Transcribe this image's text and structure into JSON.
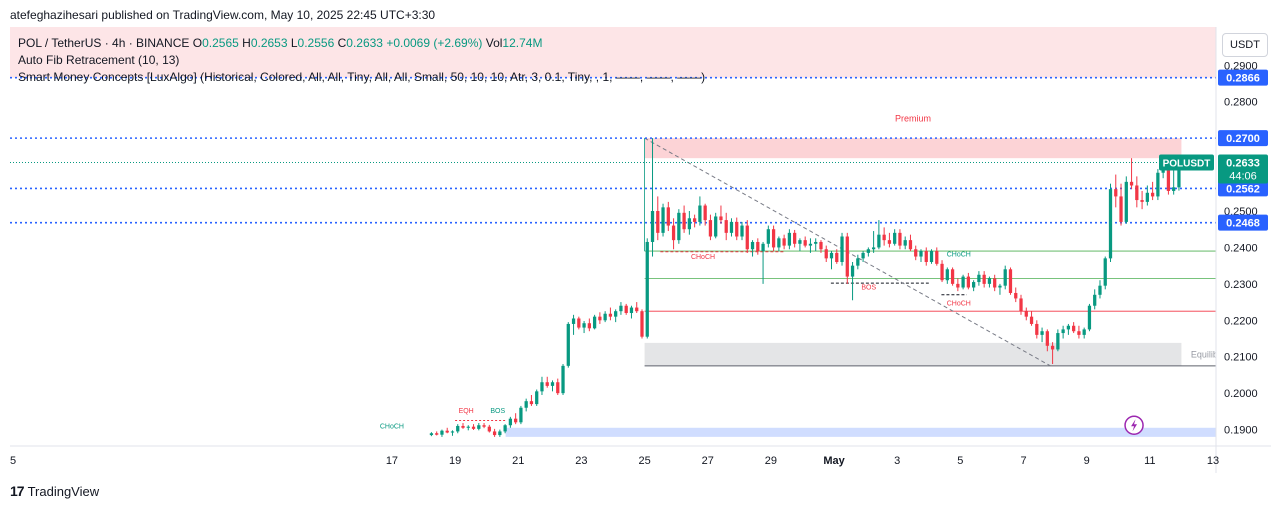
{
  "header": {
    "publisher_line": "atefeghazihesari published on TradingView.com, May 10, 2025 22:45 UTC+3:30"
  },
  "legend": {
    "symbol_line": "POL / TetherUS · 4h · BINANCE",
    "open_label": "O",
    "open": "0.2565",
    "high_label": "H",
    "high": "0.2653",
    "low_label": "L",
    "low": "0.2556",
    "close_label": "C",
    "close": "0.2633",
    "change": "+0.0069 (+2.69%)",
    "vol_label": "Vol",
    "vol": "12.74M",
    "indicator1": "Auto Fib Retracement (10, 13)",
    "indicator2": "Smart Money Concepts [LuxAlgo] (Historical, Colored, All, All, Tiny, All, All, Small, 50, 10, 10, Atr, 3, 0.1, Tiny, , 1, ——, ——, ——)"
  },
  "axis": {
    "currency": "USDT"
  },
  "footer": {
    "brand_mark": "17",
    "brand": "TradingView"
  },
  "colors": {
    "up": "#089981",
    "down": "#f23645",
    "fib": "#2962ff",
    "premium": "#f23645",
    "equilibrium": "#9598a1"
  },
  "chart_data": {
    "type": "candlestick",
    "title": "POL / TetherUS · 4h · BINANCE",
    "ylim": [
      0.1855,
      0.3005
    ],
    "y_ticks": [
      "0.1900",
      "0.2000",
      "0.2100",
      "0.2200",
      "0.2300",
      "0.2400",
      "0.2500",
      "0.2600",
      "0.2800",
      "0.2900"
    ],
    "x_ticks": [
      {
        "label": "5",
        "t": -2.0
      },
      {
        "label": "17",
        "t": 10.0
      },
      {
        "label": "19",
        "t": 12.0
      },
      {
        "label": "21",
        "t": 14.0
      },
      {
        "label": "23",
        "t": 16.0
      },
      {
        "label": "25",
        "t": 18.0
      },
      {
        "label": "27",
        "t": 20.0
      },
      {
        "label": "29",
        "t": 22.0
      },
      {
        "label": "May",
        "t": 24.0
      },
      {
        "label": "3",
        "t": 26.0
      },
      {
        "label": "5",
        "t": 28.0
      },
      {
        "label": "7",
        "t": 30.0
      },
      {
        "label": "9",
        "t": 32.0
      },
      {
        "label": "11",
        "t": 34.0
      },
      {
        "label": "13",
        "t": 36.0
      }
    ],
    "candle_start_t": 11.25,
    "candle_step_t": 0.1667,
    "ohlc": [
      [
        0.1885,
        0.1893,
        0.1882,
        0.189
      ],
      [
        0.189,
        0.1895,
        0.1884,
        0.1886
      ],
      [
        0.1886,
        0.19,
        0.188,
        0.1897
      ],
      [
        0.1897,
        0.1905,
        0.189,
        0.1892
      ],
      [
        0.1892,
        0.1898,
        0.1883,
        0.1895
      ],
      [
        0.1895,
        0.1915,
        0.189,
        0.191
      ],
      [
        0.191,
        0.1918,
        0.1902,
        0.1905
      ],
      [
        0.1905,
        0.1912,
        0.1898,
        0.1908
      ],
      [
        0.1908,
        0.1915,
        0.1899,
        0.1902
      ],
      [
        0.1902,
        0.1918,
        0.1898,
        0.1912
      ],
      [
        0.1912,
        0.1918,
        0.1904,
        0.1908
      ],
      [
        0.1908,
        0.1913,
        0.1892,
        0.1895
      ],
      [
        0.1895,
        0.1902,
        0.188,
        0.1885
      ],
      [
        0.1885,
        0.19,
        0.188,
        0.1895
      ],
      [
        0.1895,
        0.1915,
        0.189,
        0.1912
      ],
      [
        0.1912,
        0.1935,
        0.1905,
        0.193
      ],
      [
        0.193,
        0.1945,
        0.1915,
        0.192
      ],
      [
        0.192,
        0.1965,
        0.1915,
        0.196
      ],
      [
        0.196,
        0.1985,
        0.195,
        0.1978
      ],
      [
        0.1978,
        0.1995,
        0.1965,
        0.197
      ],
      [
        0.197,
        0.201,
        0.1965,
        0.2005
      ],
      [
        0.2005,
        0.2045,
        0.1995,
        0.203
      ],
      [
        0.203,
        0.2045,
        0.2015,
        0.202
      ],
      [
        0.202,
        0.2035,
        0.2005,
        0.203
      ],
      [
        0.203,
        0.204,
        0.1995,
        0.2
      ],
      [
        0.2,
        0.208,
        0.1995,
        0.2075
      ],
      [
        0.2075,
        0.2195,
        0.207,
        0.219
      ],
      [
        0.219,
        0.2215,
        0.216,
        0.2205
      ],
      [
        0.2205,
        0.221,
        0.2175,
        0.218
      ],
      [
        0.218,
        0.2198,
        0.2165,
        0.2192
      ],
      [
        0.2192,
        0.2205,
        0.217,
        0.2178
      ],
      [
        0.2178,
        0.2215,
        0.2175,
        0.221
      ],
      [
        0.221,
        0.2222,
        0.219,
        0.22
      ],
      [
        0.22,
        0.2225,
        0.2195,
        0.2218
      ],
      [
        0.2218,
        0.2235,
        0.22,
        0.221
      ],
      [
        0.221,
        0.223,
        0.2195,
        0.2225
      ],
      [
        0.2225,
        0.225,
        0.2215,
        0.224
      ],
      [
        0.224,
        0.2245,
        0.2215,
        0.222
      ],
      [
        0.222,
        0.224,
        0.2205,
        0.2235
      ],
      [
        0.2235,
        0.225,
        0.222,
        0.2225
      ],
      [
        0.2225,
        0.223,
        0.215,
        0.2155
      ],
      [
        0.2155,
        0.2425,
        0.215,
        0.2415
      ],
      [
        0.2415,
        0.27,
        0.2375,
        0.25
      ],
      [
        0.25,
        0.254,
        0.242,
        0.244
      ],
      [
        0.244,
        0.252,
        0.243,
        0.251
      ],
      [
        0.251,
        0.2525,
        0.2445,
        0.246
      ],
      [
        0.246,
        0.248,
        0.2395,
        0.242
      ],
      [
        0.242,
        0.2505,
        0.241,
        0.2495
      ],
      [
        0.2495,
        0.2515,
        0.244,
        0.245
      ],
      [
        0.245,
        0.25,
        0.2435,
        0.248
      ],
      [
        0.248,
        0.249,
        0.2455,
        0.247
      ],
      [
        0.247,
        0.254,
        0.246,
        0.2515
      ],
      [
        0.2515,
        0.252,
        0.246,
        0.2475
      ],
      [
        0.2475,
        0.249,
        0.242,
        0.243
      ],
      [
        0.243,
        0.2495,
        0.2425,
        0.2485
      ],
      [
        0.2485,
        0.2515,
        0.2465,
        0.2475
      ],
      [
        0.2475,
        0.2495,
        0.242,
        0.244
      ],
      [
        0.244,
        0.248,
        0.243,
        0.247
      ],
      [
        0.247,
        0.2482,
        0.242,
        0.243
      ],
      [
        0.243,
        0.247,
        0.242,
        0.246
      ],
      [
        0.246,
        0.2475,
        0.2385,
        0.2395
      ],
      [
        0.2395,
        0.242,
        0.2375,
        0.2415
      ],
      [
        0.2415,
        0.2425,
        0.238,
        0.239
      ],
      [
        0.239,
        0.2415,
        0.23,
        0.241
      ],
      [
        0.241,
        0.246,
        0.24,
        0.245
      ],
      [
        0.245,
        0.246,
        0.239,
        0.24
      ],
      [
        0.24,
        0.243,
        0.239,
        0.2425
      ],
      [
        0.2425,
        0.2435,
        0.2395,
        0.2405
      ],
      [
        0.2405,
        0.245,
        0.2395,
        0.244
      ],
      [
        0.244,
        0.2448,
        0.24,
        0.241
      ],
      [
        0.241,
        0.2425,
        0.239,
        0.242
      ],
      [
        0.242,
        0.243,
        0.24,
        0.2405
      ],
      [
        0.2405,
        0.2425,
        0.2385,
        0.241
      ],
      [
        0.241,
        0.2425,
        0.239,
        0.2415
      ],
      [
        0.2415,
        0.242,
        0.2385,
        0.2395
      ],
      [
        0.2395,
        0.2405,
        0.236,
        0.237
      ],
      [
        0.237,
        0.239,
        0.234,
        0.2385
      ],
      [
        0.2385,
        0.2395,
        0.2355,
        0.236
      ],
      [
        0.236,
        0.244,
        0.235,
        0.243
      ],
      [
        0.243,
        0.244,
        0.23,
        0.232
      ],
      [
        0.232,
        0.236,
        0.2255,
        0.235
      ],
      [
        0.235,
        0.238,
        0.234,
        0.237
      ],
      [
        0.237,
        0.239,
        0.236,
        0.2385
      ],
      [
        0.2385,
        0.24,
        0.2375,
        0.2395
      ],
      [
        0.2395,
        0.2445,
        0.2385,
        0.24
      ],
      [
        0.24,
        0.2475,
        0.2395,
        0.2435
      ],
      [
        0.2435,
        0.2455,
        0.2405,
        0.242
      ],
      [
        0.242,
        0.244,
        0.24,
        0.241
      ],
      [
        0.241,
        0.245,
        0.2405,
        0.244
      ],
      [
        0.244,
        0.245,
        0.2395,
        0.2405
      ],
      [
        0.2405,
        0.243,
        0.2395,
        0.242
      ],
      [
        0.242,
        0.2435,
        0.239,
        0.2395
      ],
      [
        0.2395,
        0.2405,
        0.2365,
        0.2375
      ],
      [
        0.2375,
        0.2395,
        0.236,
        0.239
      ],
      [
        0.239,
        0.24,
        0.235,
        0.236
      ],
      [
        0.236,
        0.2395,
        0.2355,
        0.239
      ],
      [
        0.239,
        0.24,
        0.235,
        0.2355
      ],
      [
        0.2355,
        0.2365,
        0.2305,
        0.231
      ],
      [
        0.231,
        0.2345,
        0.23,
        0.234
      ],
      [
        0.234,
        0.2345,
        0.2295,
        0.23
      ],
      [
        0.23,
        0.2315,
        0.228,
        0.229
      ],
      [
        0.229,
        0.2325,
        0.2285,
        0.232
      ],
      [
        0.232,
        0.233,
        0.2285,
        0.229
      ],
      [
        0.229,
        0.231,
        0.228,
        0.2305
      ],
      [
        0.2305,
        0.2335,
        0.2295,
        0.2325
      ],
      [
        0.2325,
        0.2335,
        0.229,
        0.23
      ],
      [
        0.23,
        0.232,
        0.229,
        0.2315
      ],
      [
        0.2315,
        0.2325,
        0.228,
        0.229
      ],
      [
        0.229,
        0.23,
        0.227,
        0.2295
      ],
      [
        0.2295,
        0.235,
        0.2285,
        0.234
      ],
      [
        0.234,
        0.2345,
        0.227,
        0.2275
      ],
      [
        0.2275,
        0.229,
        0.225,
        0.226
      ],
      [
        0.226,
        0.227,
        0.2215,
        0.2225
      ],
      [
        0.2225,
        0.2235,
        0.22,
        0.221
      ],
      [
        0.221,
        0.2225,
        0.2185,
        0.219
      ],
      [
        0.219,
        0.22,
        0.215,
        0.216
      ],
      [
        0.216,
        0.218,
        0.214,
        0.217
      ],
      [
        0.217,
        0.2175,
        0.2115,
        0.213
      ],
      [
        0.213,
        0.214,
        0.208,
        0.212
      ],
      [
        0.212,
        0.2175,
        0.2115,
        0.2165
      ],
      [
        0.2165,
        0.2185,
        0.215,
        0.2175
      ],
      [
        0.2175,
        0.219,
        0.216,
        0.2185
      ],
      [
        0.2185,
        0.2195,
        0.2165,
        0.217
      ],
      [
        0.217,
        0.2185,
        0.215,
        0.216
      ],
      [
        0.216,
        0.218,
        0.215,
        0.2175
      ],
      [
        0.2175,
        0.2245,
        0.217,
        0.224
      ],
      [
        0.224,
        0.2285,
        0.223,
        0.227
      ],
      [
        0.227,
        0.231,
        0.226,
        0.2295
      ],
      [
        0.2295,
        0.2375,
        0.2285,
        0.237
      ],
      [
        0.237,
        0.2575,
        0.236,
        0.256
      ],
      [
        0.256,
        0.26,
        0.251,
        0.254
      ],
      [
        0.254,
        0.2575,
        0.246,
        0.247
      ],
      [
        0.247,
        0.2595,
        0.2465,
        0.258
      ],
      [
        0.258,
        0.2645,
        0.256,
        0.257
      ],
      [
        0.257,
        0.2595,
        0.251,
        0.253
      ],
      [
        0.253,
        0.2555,
        0.2505,
        0.2525
      ],
      [
        0.2525,
        0.257,
        0.2515,
        0.255
      ],
      [
        0.255,
        0.258,
        0.253,
        0.254
      ],
      [
        0.254,
        0.2615,
        0.253,
        0.2605
      ],
      [
        0.2605,
        0.264,
        0.259,
        0.263
      ],
      [
        0.263,
        0.264,
        0.2545,
        0.2555
      ],
      [
        0.2555,
        0.2645,
        0.2545,
        0.2565
      ],
      [
        0.2565,
        0.2653,
        0.2556,
        0.2633
      ]
    ],
    "price_levels": [
      {
        "value": 0.2866,
        "label": "0.2866",
        "color": "#2962ff",
        "style": "dotted"
      },
      {
        "value": 0.27,
        "label": "0.2700",
        "color": "#2962ff",
        "style": "dotted"
      },
      {
        "value": 0.2562,
        "label": "0.2562",
        "color": "#2962ff",
        "style": "dotted"
      },
      {
        "value": 0.2468,
        "label": "0.2468",
        "color": "#2962ff",
        "style": "dotted"
      }
    ],
    "last_price": {
      "symbol": "POLUSDT",
      "value": "0.2633",
      "countdown": "44:06"
    },
    "zones": {
      "premium": {
        "label": "Premium",
        "top": 0.27,
        "bottom": 0.2645
      },
      "equilibrium": {
        "label": "Equilibrium",
        "top": 0.2138,
        "bottom": 0.2075
      },
      "discount_top": 0.1905
    },
    "structure_lines": [
      {
        "value": 0.239,
        "color": "#4caf50",
        "t_start": 18.0
      },
      {
        "value": 0.2315,
        "color": "#4caf50",
        "t_start": 18.0
      },
      {
        "value": 0.2225,
        "color": "#f23645",
        "t_start": 18.0
      }
    ],
    "annotations": [
      {
        "text": "CHoCH",
        "t": 10.0,
        "y": 0.1903,
        "color": "#089981"
      },
      {
        "text": "EQH",
        "t": 12.35,
        "y": 0.1945,
        "color": "#f23645"
      },
      {
        "text": "BOS",
        "t": 13.35,
        "y": 0.1945,
        "color": "#089981"
      },
      {
        "text": "CHoCH",
        "t": 19.85,
        "y": 0.2368,
        "color": "#f23645"
      },
      {
        "text": "BOS",
        "t": 25.1,
        "y": 0.2285,
        "color": "#f23645"
      },
      {
        "text": "CHoCH",
        "t": 27.95,
        "y": 0.2375,
        "color": "#089981"
      },
      {
        "text": "CHoCH",
        "t": 27.95,
        "y": 0.224,
        "color": "#f23645"
      }
    ]
  }
}
